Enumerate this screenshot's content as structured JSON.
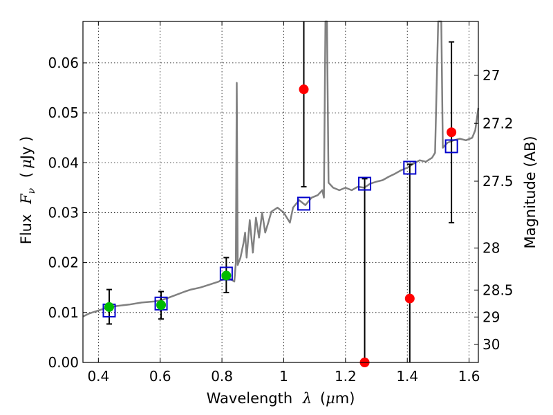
{
  "chart_data": {
    "type": "scatter",
    "title": "",
    "xlabel": "Wavelength",
    "xlabel_symbol": "λ",
    "xlabel_unit_prefix": "(",
    "xlabel_unit_mu": "μ",
    "xlabel_unit_rest": "m)",
    "ylabel": "Flux",
    "ylabel_symbol": "F",
    "ylabel_symbol_sub": "ν",
    "ylabel_unit_prefix": "(",
    "ylabel_unit_mu": "μ",
    "ylabel_unit_rest": "Jy )",
    "y2label": "Magnitude (AB)",
    "xlim": [
      0.35,
      1.63
    ],
    "ylim": [
      0.0,
      0.0683
    ],
    "grid": true,
    "legend": "none",
    "xticks": [
      0.4,
      0.6,
      0.8,
      1.0,
      1.2,
      1.4,
      1.6
    ],
    "xtick_labels": [
      "0.4",
      "0.6",
      "0.8",
      "1",
      "1.2",
      "1.4",
      "1.6"
    ],
    "yticks": [
      0.0,
      0.01,
      0.02,
      0.03,
      0.04,
      0.05,
      0.06
    ],
    "ytick_labels": [
      "0.00",
      "0.01",
      "0.02",
      "0.03",
      "0.04",
      "0.05",
      "0.06"
    ],
    "y2ticks": [
      {
        "label": "27",
        "flux": 0.0575
      },
      {
        "label": "27.2",
        "flux": 0.0479
      },
      {
        "label": "27.5",
        "flux": 0.0363
      },
      {
        "label": "28",
        "flux": 0.0229
      },
      {
        "label": "28.5",
        "flux": 0.0145
      },
      {
        "label": "29",
        "flux": 0.0091
      },
      {
        "label": "30",
        "flux": 0.0036
      }
    ],
    "colors": {
      "spectrum": "#808080",
      "model_box": "#0000cc",
      "detection": "#00bb00",
      "upper": "#ff0000",
      "errorbar": "#000000",
      "grid": "#000000"
    },
    "spectrum": [
      [
        0.35,
        0.0092
      ],
      [
        0.37,
        0.0098
      ],
      [
        0.4,
        0.0104
      ],
      [
        0.43,
        0.011
      ],
      [
        0.46,
        0.0113
      ],
      [
        0.5,
        0.0116
      ],
      [
        0.54,
        0.012
      ],
      [
        0.58,
        0.0122
      ],
      [
        0.6,
        0.0124
      ],
      [
        0.62,
        0.0128
      ],
      [
        0.65,
        0.0135
      ],
      [
        0.68,
        0.0142
      ],
      [
        0.7,
        0.0146
      ],
      [
        0.73,
        0.015
      ],
      [
        0.76,
        0.0156
      ],
      [
        0.79,
        0.0162
      ],
      [
        0.815,
        0.0172
      ],
      [
        0.83,
        0.0166
      ],
      [
        0.84,
        0.0162
      ],
      [
        0.845,
        0.02
      ],
      [
        0.848,
        0.056
      ],
      [
        0.851,
        0.0195
      ],
      [
        0.86,
        0.021
      ],
      [
        0.87,
        0.024
      ],
      [
        0.875,
        0.026
      ],
      [
        0.88,
        0.021
      ],
      [
        0.89,
        0.0285
      ],
      [
        0.9,
        0.022
      ],
      [
        0.91,
        0.029
      ],
      [
        0.92,
        0.025
      ],
      [
        0.93,
        0.03
      ],
      [
        0.94,
        0.026
      ],
      [
        0.95,
        0.028
      ],
      [
        0.96,
        0.0302
      ],
      [
        0.98,
        0.031
      ],
      [
        1.0,
        0.03
      ],
      [
        1.02,
        0.028
      ],
      [
        1.03,
        0.031
      ],
      [
        1.05,
        0.0325
      ],
      [
        1.07,
        0.0315
      ],
      [
        1.09,
        0.033
      ],
      [
        1.11,
        0.0335
      ],
      [
        1.125,
        0.0345
      ],
      [
        1.13,
        0.033
      ],
      [
        1.135,
        0.0683
      ],
      [
        1.14,
        0.0683
      ],
      [
        1.145,
        0.036
      ],
      [
        1.16,
        0.035
      ],
      [
        1.18,
        0.0345
      ],
      [
        1.2,
        0.035
      ],
      [
        1.22,
        0.0345
      ],
      [
        1.24,
        0.0352
      ],
      [
        1.26,
        0.035
      ],
      [
        1.28,
        0.0358
      ],
      [
        1.3,
        0.0362
      ],
      [
        1.32,
        0.0365
      ],
      [
        1.34,
        0.0372
      ],
      [
        1.36,
        0.0378
      ],
      [
        1.38,
        0.0385
      ],
      [
        1.4,
        0.039
      ],
      [
        1.42,
        0.0398
      ],
      [
        1.44,
        0.0405
      ],
      [
        1.46,
        0.0402
      ],
      [
        1.48,
        0.041
      ],
      [
        1.49,
        0.042
      ],
      [
        1.5,
        0.0683
      ],
      [
        1.51,
        0.0683
      ],
      [
        1.515,
        0.043
      ],
      [
        1.53,
        0.044
      ],
      [
        1.55,
        0.0445
      ],
      [
        1.57,
        0.0448
      ],
      [
        1.59,
        0.0445
      ],
      [
        1.61,
        0.045
      ],
      [
        1.62,
        0.0465
      ],
      [
        1.63,
        0.051
      ]
    ],
    "model_boxes": [
      {
        "x": 0.435,
        "y": 0.0104
      },
      {
        "x": 0.603,
        "y": 0.0118
      },
      {
        "x": 0.814,
        "y": 0.0178
      },
      {
        "x": 1.065,
        "y": 0.0318
      },
      {
        "x": 1.262,
        "y": 0.0358
      },
      {
        "x": 1.408,
        "y": 0.039
      },
      {
        "x": 1.543,
        "y": 0.0433
      }
    ],
    "detections": [
      {
        "x": 0.435,
        "y": 0.0111,
        "err_low": 0.0077,
        "err_high": 0.0146
      },
      {
        "x": 0.603,
        "y": 0.0115,
        "err_low": 0.0087,
        "err_high": 0.0142
      },
      {
        "x": 0.814,
        "y": 0.0174,
        "err_low": 0.014,
        "err_high": 0.021
      }
    ],
    "upper_points": [
      {
        "x": 1.065,
        "y": 0.0547,
        "err_low": 0.0352,
        "err_high": 0.0683
      },
      {
        "x": 1.262,
        "y": 0.0,
        "err_low": 0.0,
        "err_high": 0.0368
      },
      {
        "x": 1.408,
        "y": 0.0128,
        "err_low": 0.0,
        "err_high": 0.0397
      },
      {
        "x": 1.543,
        "y": 0.0461,
        "err_low": 0.028,
        "err_high": 0.0642
      }
    ]
  }
}
